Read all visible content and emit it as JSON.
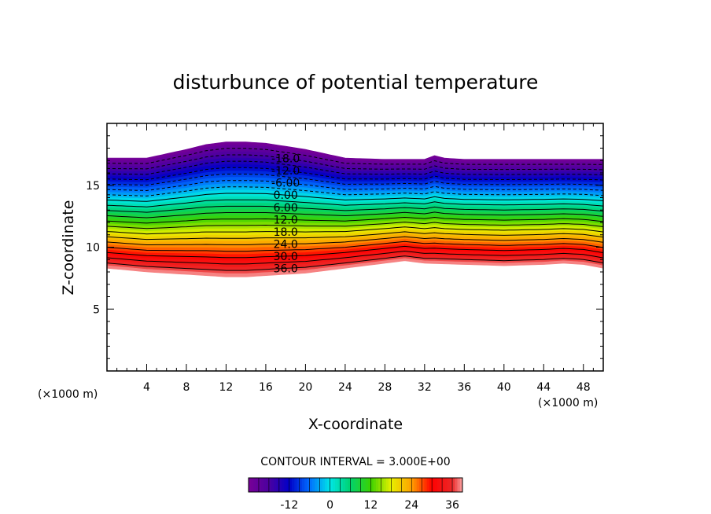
{
  "chart_data": {
    "type": "contour",
    "title": "disturbunce of potential temperature",
    "xlabel": "X-coordinate",
    "ylabel": "Z-coordinate",
    "x_unit_left": "(×1000 m)",
    "x_unit_right": "(×1000 m)",
    "xlim": [
      0,
      50
    ],
    "ylim": [
      0,
      20
    ],
    "x_ticks": [
      4,
      8,
      12,
      16,
      20,
      24,
      28,
      32,
      36,
      40,
      44,
      48
    ],
    "y_ticks": [
      5,
      10,
      15
    ],
    "contour_interval_text": "CONTOUR INTERVAL = 3.000E+00",
    "contour_interval": 3.0,
    "value_range": [
      -24,
      39
    ],
    "contour_labels": [
      "-18.0",
      "-12.0",
      "-6.00",
      "0.00",
      "6.00",
      "12.0",
      "18.0",
      "24.0",
      "30.0",
      "36.0"
    ],
    "contour_label_values": [
      -18,
      -12,
      -6,
      0,
      6,
      12,
      18,
      24,
      30,
      36
    ],
    "colorbar_ticks": [
      "-12",
      "0",
      "12",
      "24",
      "36"
    ],
    "colorbar_tick_values": [
      -12,
      0,
      12,
      24,
      36
    ],
    "band_bottom_profile": {
      "x": [
        0,
        4,
        8,
        10,
        12,
        14,
        16,
        20,
        24,
        28,
        30,
        32,
        36,
        40,
        44,
        46,
        48,
        50
      ],
      "z": [
        8.3,
        8.0,
        7.8,
        7.7,
        7.6,
        7.6,
        7.7,
        7.9,
        8.3,
        8.7,
        8.9,
        8.7,
        8.6,
        8.5,
        8.6,
        8.7,
        8.6,
        8.3
      ]
    },
    "band_top_profile": {
      "x": [
        0,
        4,
        8,
        10,
        12,
        14,
        16,
        20,
        24,
        28,
        30,
        32,
        33,
        34,
        36,
        40,
        44,
        48,
        50
      ],
      "z": [
        17.2,
        17.2,
        17.9,
        18.3,
        18.5,
        18.5,
        18.4,
        17.9,
        17.2,
        17.1,
        17.1,
        17.1,
        17.4,
        17.2,
        17.1,
        17.1,
        17.1,
        17.1,
        17.1
      ]
    }
  }
}
